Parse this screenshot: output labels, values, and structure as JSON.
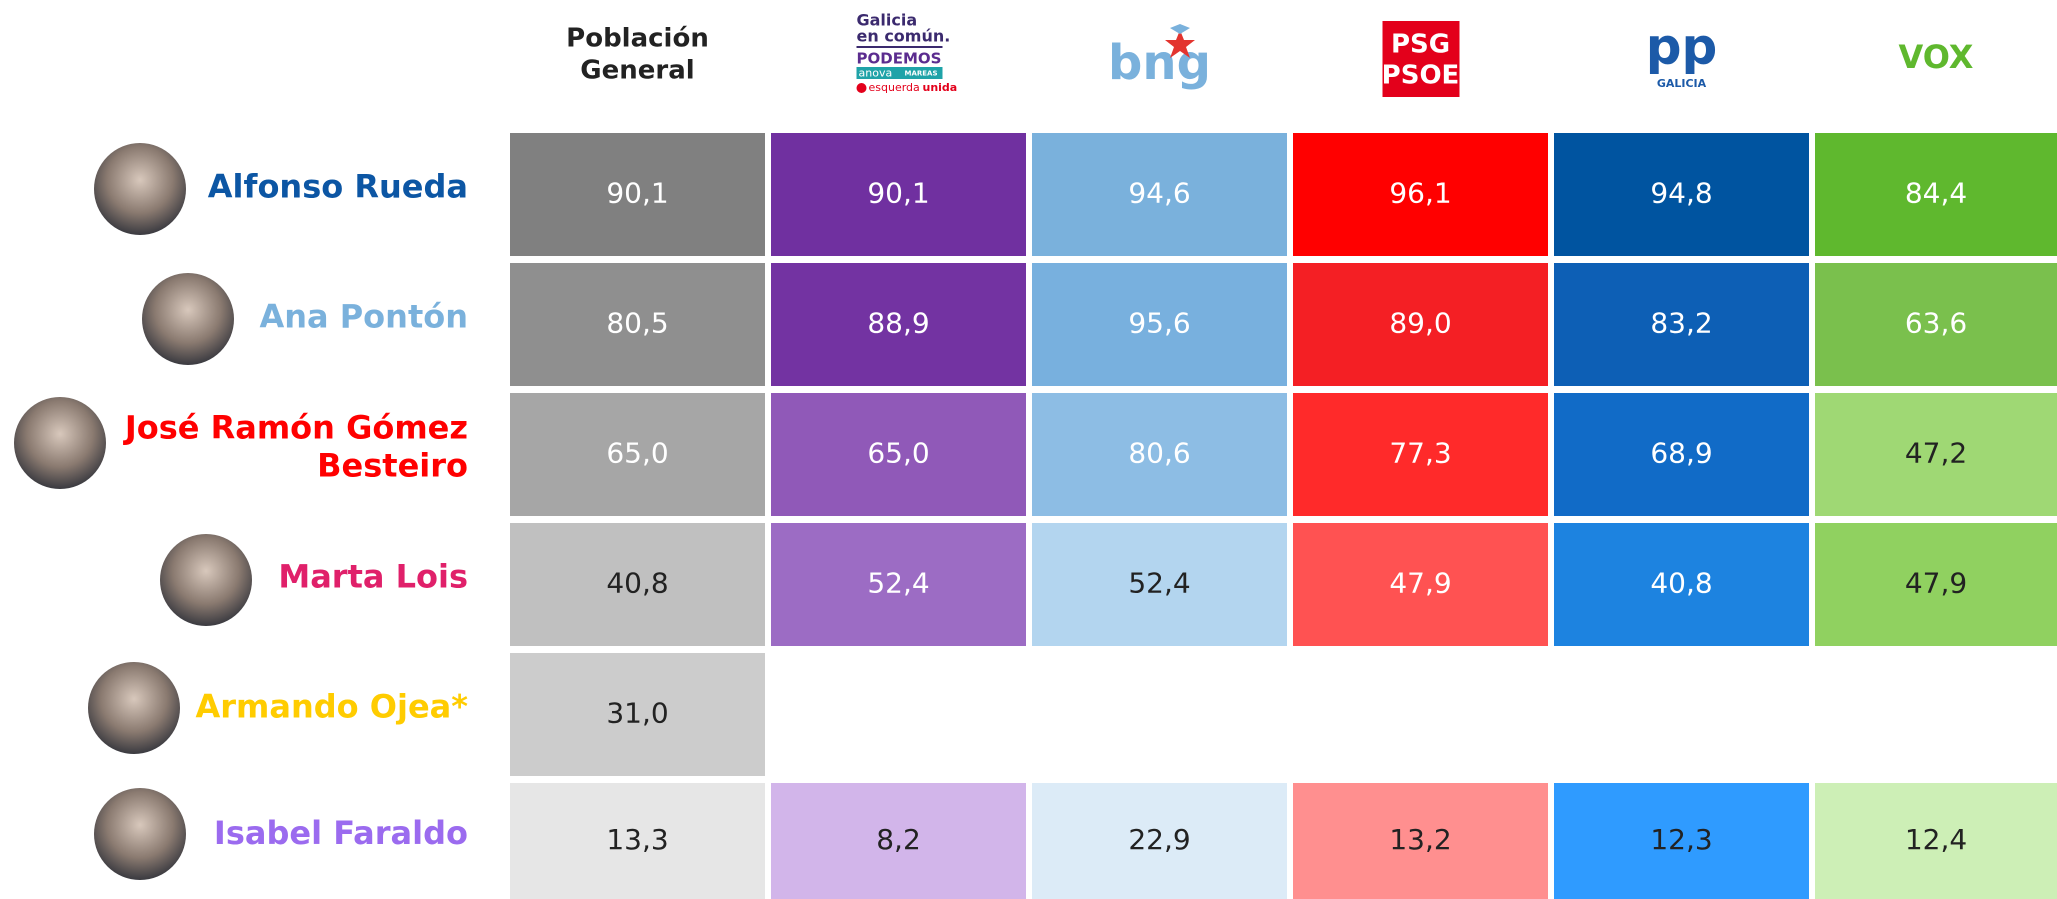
{
  "header": {
    "columns": [
      {
        "lines": [
          "Población",
          "General"
        ]
      },
      {
        "lines": [
          "Galicia",
          "en común.",
          "PODEMOS",
          "anova",
          "MAREAS",
          "esquerda",
          "unida"
        ]
      },
      {
        "lines": [
          "bng"
        ]
      },
      {
        "lines": [
          "PSG",
          "PSOE"
        ]
      },
      {
        "lines": [
          "pp",
          "GALICIA"
        ]
      },
      {
        "lines": [
          "VOX"
        ]
      }
    ]
  },
  "rows": [
    {
      "name": [
        "Alfonso Rueda"
      ],
      "color": "#0c56a4",
      "cells": [
        {
          "text": "90,1",
          "color": "#808080",
          "text_color": "#ffffff"
        },
        {
          "text": "90,1",
          "color": "#7030a0",
          "text_color": "#ffffff"
        },
        {
          "text": "94,6",
          "color": "#7ab1dc",
          "text_color": "#ffffff"
        },
        {
          "text": "96,1",
          "color": "#ff0000",
          "text_color": "#ffffff"
        },
        {
          "text": "94,8",
          "color": "#0054a0",
          "text_color": "#ffffff"
        },
        {
          "text": "84,4",
          "color": "#5fb82e",
          "text_color": "#ffffff"
        }
      ]
    },
    {
      "name": [
        "Ana Pontón"
      ],
      "color": "#7ab1dc",
      "cells": [
        {
          "text": "80,5",
          "color": "#8f8f8f",
          "text_color": "#ffffff"
        },
        {
          "text": "88,9",
          "color": "#7333a2",
          "text_color": "#ffffff"
        },
        {
          "text": "95,6",
          "color": "#78b0de",
          "text_color": "#ffffff"
        },
        {
          "text": "89,0",
          "color": "#f41f24",
          "text_color": "#ffffff"
        },
        {
          "text": "83,2",
          "color": "#0d5fb5",
          "text_color": "#ffffff"
        },
        {
          "text": "63,6",
          "color": "#7ac04d",
          "text_color": "#ffffff"
        }
      ]
    },
    {
      "name": [
        "José Ramón Gómez",
        "Besteiro"
      ],
      "color": "#ff0000",
      "cells": [
        {
          "text": "65,0",
          "color": "#a6a6a6",
          "text_color": "#ffffff"
        },
        {
          "text": "65,0",
          "color": "#9059b8",
          "text_color": "#ffffff"
        },
        {
          "text": "80,6",
          "color": "#8dbde4",
          "text_color": "#ffffff"
        },
        {
          "text": "77,3",
          "color": "#ff2a2a",
          "text_color": "#ffffff"
        },
        {
          "text": "68,9",
          "color": "#116bc7",
          "text_color": "#ffffff"
        },
        {
          "text": "47,2",
          "color": "#9fd874",
          "text_color": "#222222"
        }
      ]
    },
    {
      "name": [
        "Marta Lois"
      ],
      "color": "#e0206a",
      "cells": [
        {
          "text": "40,8",
          "color": "#c0c0c0",
          "text_color": "#222222"
        },
        {
          "text": "52,4",
          "color": "#9c6cc4",
          "text_color": "#ffffff"
        },
        {
          "text": "52,4",
          "color": "#b3d5ef",
          "text_color": "#222222"
        },
        {
          "text": "47,9",
          "color": "#ff5252",
          "text_color": "#ffffff"
        },
        {
          "text": "40,8",
          "color": "#1d83e0",
          "text_color": "#ffffff"
        },
        {
          "text": "47,9",
          "color": "#90d160",
          "text_color": "#222222"
        }
      ]
    },
    {
      "name": [
        "Armando Ojea*"
      ],
      "color": "#ffcc00",
      "cells": [
        {
          "text": "31,0",
          "color": "#cccccc",
          "text_color": "#222222"
        },
        null,
        null,
        null,
        null,
        null
      ]
    },
    {
      "name": [
        "Isabel Faraldo"
      ],
      "color": "#9b6bef",
      "cells": [
        {
          "text": "13,3",
          "color": "#e6e6e6",
          "text_color": "#222222"
        },
        {
          "text": "8,2",
          "color": "#d2b5ea",
          "text_color": "#222222"
        },
        {
          "text": "22,9",
          "color": "#dcebf7",
          "text_color": "#222222"
        },
        {
          "text": "13,2",
          "color": "#ff8f8f",
          "text_color": "#222222"
        },
        {
          "text": "12,3",
          "color": "#2f9bff",
          "text_color": "#222222"
        },
        {
          "text": "12,4",
          "color": "#cdefb6",
          "text_color": "#222222"
        }
      ]
    }
  ]
}
